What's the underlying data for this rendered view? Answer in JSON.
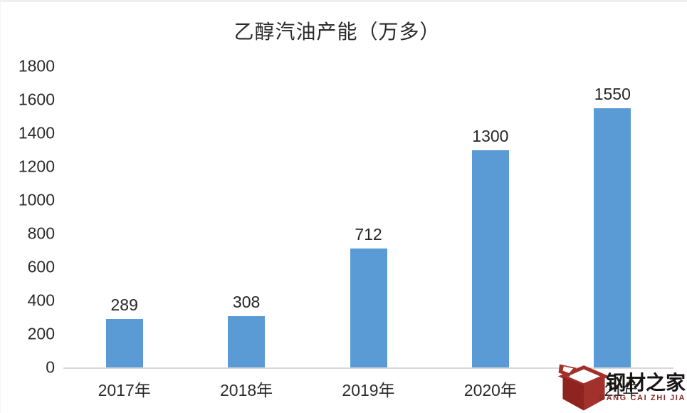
{
  "chart_data": {
    "type": "bar",
    "title": "乙醇汽油产能（万多）",
    "categories": [
      "2017年",
      "2018年",
      "2019年",
      "2020年",
      "2021年"
    ],
    "values": [
      289,
      308,
      712,
      1300,
      1550
    ],
    "value_labels": [
      "289",
      "308",
      "712",
      "1300",
      "1550"
    ],
    "xlabel": "",
    "ylabel": "",
    "ylim": [
      0,
      1800
    ],
    "ytick_step": 200,
    "bar_color": "#5B9BD5",
    "axis_line_color": "#d9d9d9",
    "text_color": "#2b2b2b",
    "grid": false,
    "legend": false
  },
  "watermark": {
    "name": "钢材之家",
    "subtitle": "GANG CAI ZHI JIA",
    "icon": "red-cube-box-icon",
    "icon_color": "#A3312B",
    "icon_color_dark": "#8E2320",
    "title_color": "#181414",
    "subtitle_color": "#8a2a26"
  }
}
